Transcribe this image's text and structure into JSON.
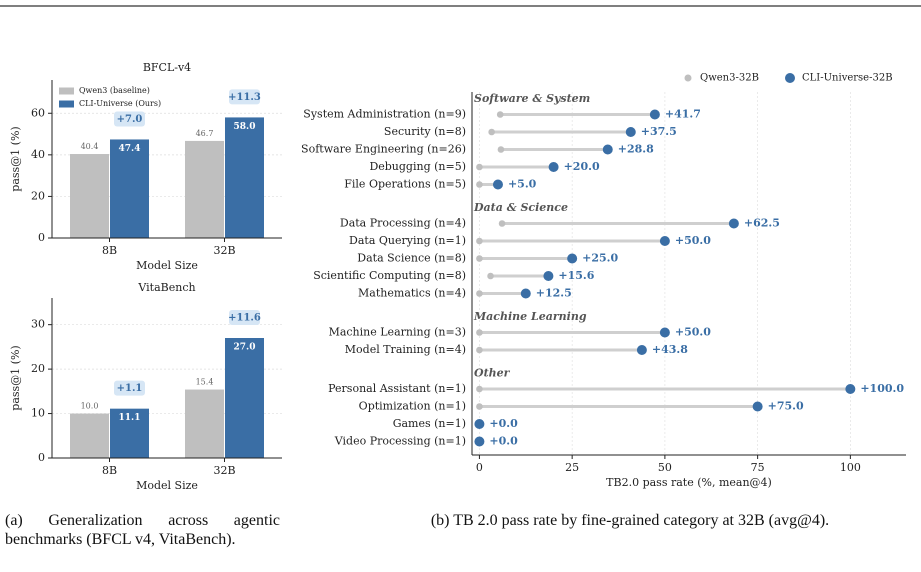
{
  "chart_data": [
    {
      "type": "bar",
      "title": "BFCL-v4",
      "ylabel": "pass@1 (%)",
      "xlabel": "Model Size",
      "categories": [
        "8B",
        "32B"
      ],
      "series": [
        {
          "name": "Qwen3 (baseline)",
          "color": "#bfbfbf",
          "values": [
            40.4,
            46.7
          ],
          "value_labels": [
            "40.4",
            "46.7"
          ]
        },
        {
          "name": "CLI-Universe (Ours)",
          "color": "#3a6ea5",
          "values": [
            47.4,
            58.0
          ],
          "value_labels": [
            "47.4",
            "58.0"
          ]
        }
      ],
      "delta_labels": [
        "+7.0",
        "+11.3"
      ],
      "ylim": [
        0,
        76
      ],
      "yticks": [
        0,
        20,
        40,
        60
      ],
      "grid": true,
      "legend": "upper left"
    },
    {
      "type": "bar",
      "title": "VitaBench",
      "ylabel": "pass@1 (%)",
      "xlabel": "Model Size",
      "categories": [
        "8B",
        "32B"
      ],
      "series": [
        {
          "color": "#bfbfbf",
          "values": [
            10.0,
            15.4
          ],
          "value_labels": [
            "10.0",
            "15.4"
          ]
        },
        {
          "color": "#3a6ea5",
          "values": [
            11.1,
            27.0
          ],
          "value_labels": [
            "11.1",
            "27.0"
          ]
        }
      ],
      "delta_labels": [
        "+1.1",
        "+11.6"
      ],
      "ylim": [
        0,
        36
      ],
      "yticks": [
        0,
        10,
        20,
        30
      ],
      "grid": true
    },
    {
      "type": "dumbbell",
      "xlabel": "TB2.0 pass rate (%, mean@4)",
      "series": [
        {
          "name": "Qwen3-32B",
          "color": "#bfbfbf"
        },
        {
          "name": "CLI-Universe-32B",
          "color": "#3a6ea5"
        }
      ],
      "groups": [
        {
          "name": "Software & System",
          "categories": [
            "System Administration (n=9)",
            "Security (n=8)",
            "Software Engineering (n=26)",
            "Debugging (n=5)",
            "File Operations (n=5)"
          ],
          "values": [
            [
              5.6,
              3.3,
              5.8,
              0,
              0
            ],
            [
              47.3,
              40.8,
              34.6,
              20.0,
              5.0
            ]
          ],
          "delta_labels": [
            "+41.7",
            "+37.5",
            "+28.8",
            "+20.0",
            "+5.0"
          ]
        },
        {
          "name": "Data & Science",
          "categories": [
            "Data Processing (n=4)",
            "Data Querying (n=1)",
            "Data Science (n=8)",
            "Scientific Computing (n=8)",
            "Mathematics (n=4)"
          ],
          "values": [
            [
              6.1,
              0,
              0,
              3.0,
              0
            ],
            [
              68.6,
              50.0,
              25.0,
              18.6,
              12.5
            ]
          ],
          "delta_labels": [
            "+62.5",
            "+50.0",
            "+25.0",
            "+15.6",
            "+12.5"
          ]
        },
        {
          "name": "Machine Learning",
          "categories": [
            "Machine Learning (n=3)",
            "Model Training (n=4)"
          ],
          "values": [
            [
              0,
              0
            ],
            [
              50.0,
              43.8
            ]
          ],
          "delta_labels": [
            "+50.0",
            "+43.8"
          ]
        },
        {
          "name": "Other",
          "categories": [
            "Personal Assistant (n=1)",
            "Optimization (n=1)",
            "Games (n=1)",
            "Video Processing (n=1)"
          ],
          "values": [
            [
              0,
              0,
              0,
              0
            ],
            [
              100.0,
              75.0,
              0,
              0
            ]
          ],
          "delta_labels": [
            "+100.0",
            "+75.0",
            "+0.0",
            "+0.0"
          ]
        }
      ],
      "xlim": [
        -2,
        115
      ],
      "xticks": [
        0,
        25,
        50,
        75,
        100
      ],
      "grid": true,
      "legend": "upper right"
    }
  ],
  "captions": [
    "(a) Generalization across agentic benchmarks (BFCL v4, VitaBench).",
    "(b) TB 2.0 pass rate by fine-grained category at 32B (avg@4)."
  ]
}
